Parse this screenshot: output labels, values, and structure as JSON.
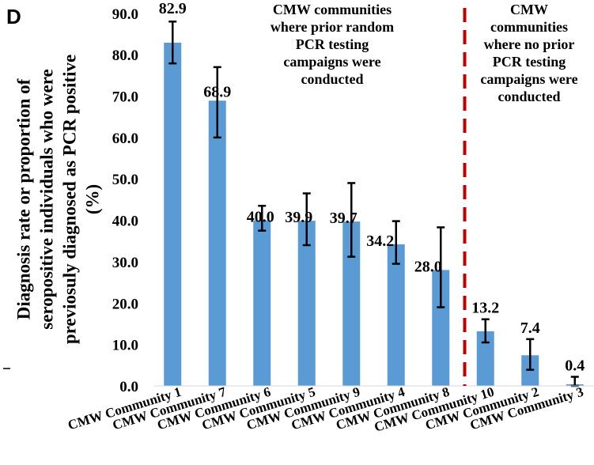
{
  "chart_data": {
    "type": "bar",
    "panel_label": "D",
    "categories": [
      "CMW Community 1",
      "CMW Community 7",
      "CMW Community 6",
      "CMW Community 5",
      "CMW Community 9",
      "CMW Community 4",
      "CMW Community 8",
      "CMW Community 10",
      "CMW Community 2",
      "CMW Community 3"
    ],
    "values": [
      82.9,
      68.9,
      40.0,
      39.9,
      39.7,
      34.2,
      28.0,
      13.2,
      7.4,
      0.4
    ],
    "value_labels": [
      "82.9",
      "68.9",
      "40.0",
      "39.9",
      "39.7",
      "34.2",
      "28.0",
      "13.2",
      "7.4",
      "0.4"
    ],
    "error_low": [
      77.9,
      60.0,
      37.5,
      34.0,
      31.2,
      29.5,
      19.0,
      10.5,
      3.9,
      0.0
    ],
    "error_high": [
      88.0,
      77.0,
      43.5,
      46.5,
      49.0,
      39.8,
      38.3,
      16.1,
      11.3,
      2.2
    ],
    "ylim": [
      0,
      90
    ],
    "yticks": [
      "0.0",
      "10.0",
      "20.0",
      "30.0",
      "40.0",
      "50.0",
      "60.0",
      "70.0",
      "80.0",
      "90.0"
    ],
    "ylabel_lines": [
      "Diagnosis rate or proportion of",
      "seropositive individuals who were",
      "previosuly diagnosed as PCR positive",
      "(%)"
    ],
    "bar_color": "#5b9bd5",
    "divider_color": "#c00000",
    "divider_after_index": 6,
    "annotations": {
      "left": [
        "CMW communities",
        "where prior random",
        "PCR testing",
        "campaigns were",
        "conducted"
      ],
      "right": [
        "CMW",
        "communities",
        "where no prior",
        "PCR testing",
        "campaigns were",
        "conducted"
      ]
    }
  }
}
